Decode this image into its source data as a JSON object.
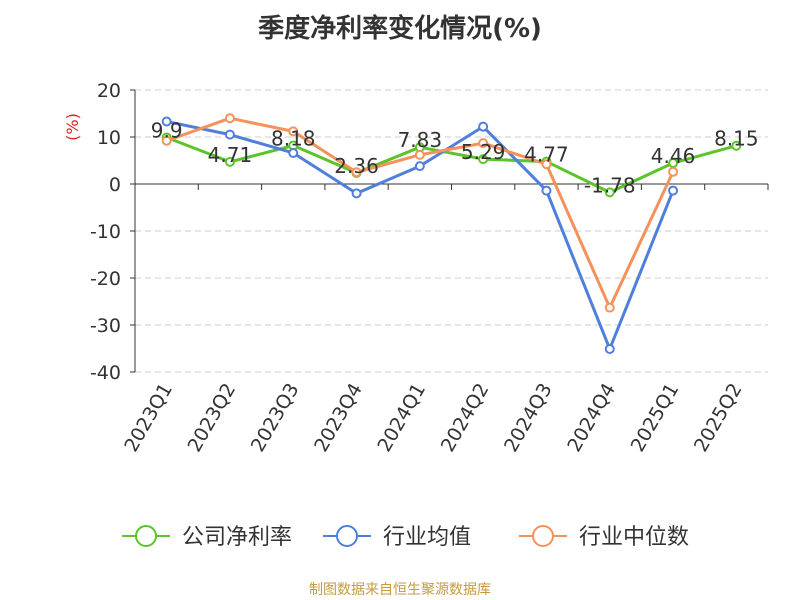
{
  "chart_data": {
    "type": "line",
    "title": "季度净利率变化情况(%)",
    "ylabel": "(%)",
    "categories": [
      "2023Q1",
      "2023Q2",
      "2023Q3",
      "2023Q4",
      "2024Q1",
      "2024Q2",
      "2024Q3",
      "2024Q4",
      "2025Q1",
      "2025Q2"
    ],
    "ylim": [
      -40,
      20
    ],
    "yticks": [
      20,
      10,
      0,
      -10,
      -20,
      -30,
      -40
    ],
    "grid": true,
    "legend_position": "bottom",
    "series": [
      {
        "name": "公司净利率",
        "color": "#5cc42b",
        "values": [
          9.9,
          4.71,
          8.18,
          2.36,
          7.83,
          5.29,
          4.77,
          -1.78,
          4.46,
          8.15
        ],
        "labels": [
          "9.9",
          "4.71",
          "8.18",
          "2.36",
          "7.83",
          "5.29",
          "4.77",
          "-1.78",
          "4.46",
          "8.15"
        ]
      },
      {
        "name": "行业均值",
        "color": "#4f7fdc",
        "values": [
          13.3,
          10.5,
          6.6,
          -2.0,
          3.8,
          12.2,
          -1.4,
          -35.1,
          -1.4,
          null
        ]
      },
      {
        "name": "行业中位数",
        "color": "#f5915a",
        "values": [
          9.2,
          14.0,
          11.2,
          2.5,
          6.2,
          8.7,
          4.2,
          -26.3,
          2.6,
          null
        ]
      }
    ]
  },
  "footer": {
    "source": "制图数据来自恒生聚源数据库"
  }
}
